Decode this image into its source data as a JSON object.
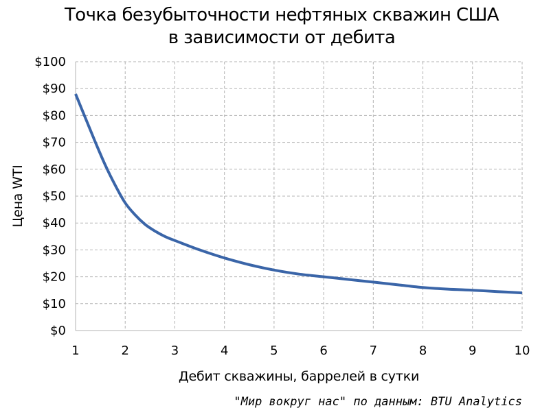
{
  "chart_data": {
    "type": "line",
    "title_lines": [
      "Точка безубыточности нефтяных скважин США",
      "в зависимости от дебита"
    ],
    "xlabel": "Дебит скважины, баррелей в сутки",
    "ylabel": "Цена WTI",
    "source": "\"Мир вокруг нас\" по данным: BTU Analytics",
    "xlim": [
      1,
      10
    ],
    "ylim": [
      0,
      100
    ],
    "x_ticks": [
      1,
      2,
      3,
      4,
      5,
      6,
      7,
      8,
      9,
      10
    ],
    "x_tick_labels": [
      "1",
      "2",
      "3",
      "4",
      "5",
      "6",
      "7",
      "8",
      "9",
      "10"
    ],
    "y_ticks": [
      0,
      10,
      20,
      30,
      40,
      50,
      60,
      70,
      80,
      90,
      100
    ],
    "y_tick_labels": [
      "$0",
      "$10",
      "$20",
      "$30",
      "$40",
      "$50",
      "$60",
      "$70",
      "$80",
      "$90",
      "$100"
    ],
    "grid": true,
    "series": [
      {
        "color": "#3a65a8",
        "x": [
          1,
          1.2,
          1.4,
          1.6,
          1.8,
          2,
          2.2,
          2.4,
          2.6,
          2.8,
          3,
          3.5,
          4,
          4.5,
          5,
          5.5,
          6,
          6.5,
          7,
          7.5,
          8,
          8.5,
          9,
          9.5,
          10
        ],
        "y": [
          88,
          79,
          70,
          61.5,
          54,
          47.5,
          43,
          39.5,
          37,
          35,
          33.5,
          30,
          27,
          24.5,
          22.5,
          21,
          20,
          19,
          18,
          17,
          16,
          15.4,
          15,
          14.5,
          14
        ]
      }
    ]
  }
}
